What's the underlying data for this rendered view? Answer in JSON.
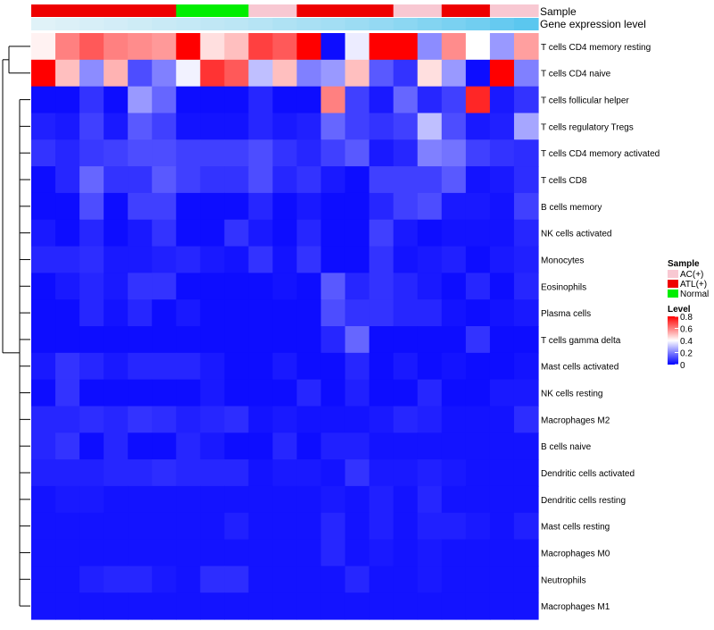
{
  "chart_data": {
    "type": "heatmap",
    "annotation_tracks": [
      "Sample",
      "Gene expression level"
    ],
    "rows": [
      "T cells CD4 memory resting",
      "T cells CD4 naive",
      "T cells follicular helper",
      "T cells regulatory  Tregs",
      "T cells CD4 memory activated",
      "T cells CD8",
      "B cells memory",
      "NK cells activated",
      "Monocytes",
      "Eosinophils",
      "Plasma cells",
      "T cells gamma delta",
      "Mast cells activated",
      "NK cells resting",
      "Macrophages M2",
      "B cells naive",
      "Dendritic cells activated",
      "Dendritic cells resting",
      "Mast cells resting",
      "Macrophages M0",
      "Neutrophils",
      "Macrophages M1"
    ],
    "sample_groups": [
      "ATL(+)",
      "ATL(+)",
      "ATL(+)",
      "ATL(+)",
      "ATL(+)",
      "ATL(+)",
      "Normal",
      "Normal",
      "Normal",
      "AC(+)",
      "AC(+)",
      "ATL(+)",
      "ATL(+)",
      "ATL(+)",
      "ATL(+)",
      "AC(+)",
      "AC(+)",
      "ATL(+)",
      "ATL(+)",
      "AC(+)",
      "AC(+)"
    ],
    "expression_level": [
      0.05,
      0.08,
      0.11,
      0.14,
      0.17,
      0.2,
      0.23,
      0.26,
      0.29,
      0.33,
      0.37,
      0.41,
      0.45,
      0.5,
      0.55,
      0.6,
      0.66,
      0.72,
      0.78,
      0.85,
      0.92
    ],
    "values": [
      [
        0.42,
        0.6,
        0.66,
        0.6,
        0.58,
        0.56,
        0.8,
        0.45,
        0.5,
        0.7,
        0.66,
        0.8,
        0.02,
        0.37,
        0.8,
        0.8,
        0.22,
        0.58,
        0.4,
        0.24,
        0.55
      ],
      [
        0.8,
        0.5,
        0.22,
        0.52,
        0.12,
        0.2,
        0.38,
        0.72,
        0.66,
        0.3,
        0.5,
        0.2,
        0.24,
        0.5,
        0.14,
        0.08,
        0.45,
        0.24,
        0.02,
        0.8,
        0.2
      ],
      [
        0.02,
        0.02,
        0.08,
        0.02,
        0.24,
        0.16,
        0.02,
        0.02,
        0.02,
        0.06,
        0.02,
        0.02,
        0.6,
        0.1,
        0.04,
        0.16,
        0.06,
        0.1,
        0.74,
        0.04,
        0.08
      ],
      [
        0.05,
        0.04,
        0.1,
        0.04,
        0.14,
        0.1,
        0.03,
        0.03,
        0.03,
        0.06,
        0.04,
        0.05,
        0.16,
        0.1,
        0.08,
        0.1,
        0.3,
        0.12,
        0.04,
        0.05,
        0.26
      ],
      [
        0.08,
        0.06,
        0.09,
        0.1,
        0.12,
        0.12,
        0.1,
        0.1,
        0.1,
        0.12,
        0.08,
        0.06,
        0.1,
        0.14,
        0.04,
        0.06,
        0.2,
        0.18,
        0.1,
        0.08,
        0.07
      ],
      [
        0.02,
        0.06,
        0.16,
        0.08,
        0.08,
        0.14,
        0.1,
        0.08,
        0.08,
        0.12,
        0.06,
        0.08,
        0.04,
        0.02,
        0.1,
        0.1,
        0.1,
        0.14,
        0.03,
        0.04,
        0.07
      ],
      [
        0.02,
        0.02,
        0.12,
        0.02,
        0.1,
        0.1,
        0.02,
        0.02,
        0.02,
        0.06,
        0.02,
        0.04,
        0.02,
        0.02,
        0.06,
        0.1,
        0.12,
        0.04,
        0.04,
        0.03,
        0.1
      ],
      [
        0.04,
        0.02,
        0.06,
        0.02,
        0.04,
        0.08,
        0.02,
        0.02,
        0.08,
        0.04,
        0.02,
        0.06,
        0.02,
        0.02,
        0.1,
        0.04,
        0.02,
        0.03,
        0.03,
        0.03,
        0.06
      ],
      [
        0.06,
        0.06,
        0.07,
        0.04,
        0.04,
        0.05,
        0.06,
        0.04,
        0.03,
        0.08,
        0.03,
        0.08,
        0.02,
        0.02,
        0.08,
        0.03,
        0.04,
        0.05,
        0.02,
        0.04,
        0.05
      ],
      [
        0.02,
        0.04,
        0.06,
        0.04,
        0.08,
        0.08,
        0.02,
        0.02,
        0.02,
        0.02,
        0.03,
        0.02,
        0.14,
        0.06,
        0.08,
        0.06,
        0.04,
        0.02,
        0.06,
        0.02,
        0.06
      ],
      [
        0.02,
        0.02,
        0.06,
        0.03,
        0.06,
        0.02,
        0.04,
        0.02,
        0.02,
        0.02,
        0.02,
        0.02,
        0.12,
        0.08,
        0.08,
        0.06,
        0.06,
        0.03,
        0.02,
        0.03,
        0.04
      ],
      [
        0.02,
        0.02,
        0.02,
        0.02,
        0.02,
        0.02,
        0.02,
        0.02,
        0.02,
        0.02,
        0.02,
        0.02,
        0.06,
        0.16,
        0.02,
        0.02,
        0.02,
        0.02,
        0.08,
        0.02,
        0.02
      ],
      [
        0.04,
        0.08,
        0.06,
        0.04,
        0.06,
        0.06,
        0.06,
        0.04,
        0.02,
        0.02,
        0.04,
        0.02,
        0.02,
        0.06,
        0.02,
        0.04,
        0.02,
        0.03,
        0.02,
        0.02,
        0.03
      ],
      [
        0.02,
        0.08,
        0.02,
        0.02,
        0.02,
        0.02,
        0.02,
        0.04,
        0.02,
        0.02,
        0.02,
        0.06,
        0.02,
        0.05,
        0.02,
        0.02,
        0.06,
        0.02,
        0.02,
        0.04,
        0.04
      ],
      [
        0.06,
        0.06,
        0.07,
        0.06,
        0.08,
        0.07,
        0.05,
        0.06,
        0.07,
        0.03,
        0.04,
        0.03,
        0.03,
        0.03,
        0.04,
        0.06,
        0.05,
        0.03,
        0.03,
        0.03,
        0.07
      ],
      [
        0.06,
        0.08,
        0.02,
        0.06,
        0.02,
        0.02,
        0.06,
        0.04,
        0.02,
        0.02,
        0.06,
        0.02,
        0.05,
        0.05,
        0.03,
        0.03,
        0.03,
        0.03,
        0.03,
        0.03,
        0.03
      ],
      [
        0.05,
        0.05,
        0.05,
        0.06,
        0.06,
        0.07,
        0.06,
        0.06,
        0.06,
        0.03,
        0.04,
        0.04,
        0.03,
        0.08,
        0.04,
        0.04,
        0.05,
        0.04,
        0.03,
        0.03,
        0.03
      ],
      [
        0.03,
        0.04,
        0.04,
        0.03,
        0.03,
        0.03,
        0.03,
        0.03,
        0.03,
        0.03,
        0.03,
        0.03,
        0.04,
        0.03,
        0.05,
        0.03,
        0.06,
        0.03,
        0.03,
        0.03,
        0.03
      ],
      [
        0.03,
        0.03,
        0.03,
        0.03,
        0.03,
        0.03,
        0.03,
        0.03,
        0.05,
        0.03,
        0.03,
        0.03,
        0.06,
        0.03,
        0.05,
        0.03,
        0.05,
        0.05,
        0.04,
        0.03,
        0.05
      ],
      [
        0.03,
        0.03,
        0.03,
        0.03,
        0.03,
        0.03,
        0.03,
        0.03,
        0.03,
        0.03,
        0.03,
        0.03,
        0.06,
        0.03,
        0.04,
        0.03,
        0.04,
        0.03,
        0.03,
        0.03,
        0.03
      ],
      [
        0.03,
        0.03,
        0.05,
        0.06,
        0.06,
        0.04,
        0.03,
        0.07,
        0.07,
        0.03,
        0.03,
        0.03,
        0.03,
        0.06,
        0.03,
        0.03,
        0.04,
        0.03,
        0.03,
        0.03,
        0.03
      ],
      [
        0.03,
        0.03,
        0.03,
        0.03,
        0.03,
        0.03,
        0.03,
        0.03,
        0.03,
        0.03,
        0.03,
        0.03,
        0.03,
        0.03,
        0.03,
        0.03,
        0.03,
        0.03,
        0.03,
        0.03,
        0.03
      ]
    ],
    "legend": {
      "sample_title": "Sample",
      "sample_items": [
        {
          "label": "AC(+)",
          "color": "#f8c8d2"
        },
        {
          "label": "ATL(+)",
          "color": "#ee0000"
        },
        {
          "label": "Normal",
          "color": "#00ee00"
        }
      ],
      "level_title": "Level",
      "level_ticks": [
        "0.8",
        "0.6",
        "0.4",
        "0.2",
        "0"
      ],
      "range": [
        0,
        0.8
      ]
    },
    "colors": {
      "low": "#0000ff",
      "mid": "#ffffff",
      "high": "#ff0000",
      "level_low": "#e8f4f8",
      "level_high": "#4fc3ee"
    }
  }
}
